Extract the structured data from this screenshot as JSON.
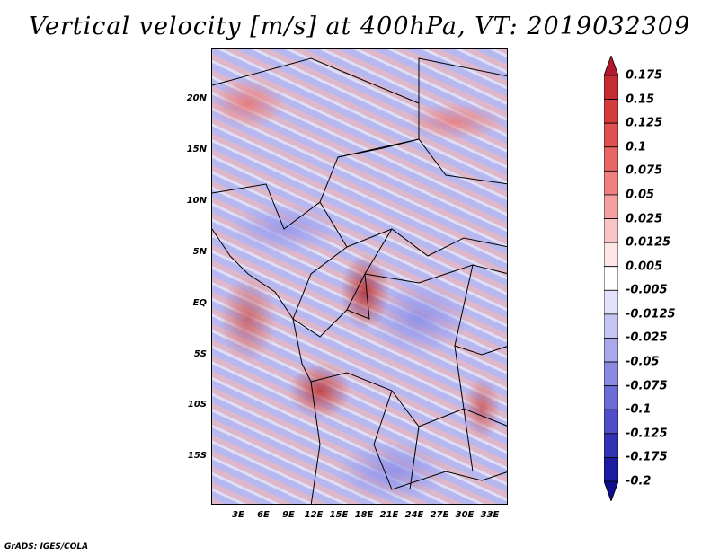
{
  "title": "Vertical velocity [m/s] at 400hPa, VT: 2019032309",
  "credit": "GrADS: IGES/COLA",
  "map": {
    "lat_labels": [
      "20N",
      "15N",
      "10N",
      "5N",
      "EQ",
      "5S",
      "10S",
      "15S"
    ],
    "lon_labels": [
      "3E",
      "6E",
      "9E",
      "12E",
      "15E",
      "18E",
      "21E",
      "24E",
      "27E",
      "30E",
      "33E"
    ]
  },
  "colorbar": {
    "labels": [
      "0.175",
      "0.15",
      "0.125",
      "0.1",
      "0.075",
      "0.05",
      "0.025",
      "0.0125",
      "0.005",
      "-0.005",
      "-0.0125",
      "-0.025",
      "-0.05",
      "-0.075",
      "-0.1",
      "-0.125",
      "-0.175",
      "-0.2"
    ],
    "colors": [
      "#b2182b",
      "#c62a32",
      "#d43c3c",
      "#e05050",
      "#e86666",
      "#f08080",
      "#f5a0a0",
      "#f9c4c4",
      "#fde6e6",
      "#ffffff",
      "#e2e2fa",
      "#c6c6f2",
      "#a8a8ea",
      "#8a8ae0",
      "#6c6cd6",
      "#4e4ec8",
      "#3232b4",
      "#1c1ca0",
      "#0c0c8c"
    ]
  }
}
